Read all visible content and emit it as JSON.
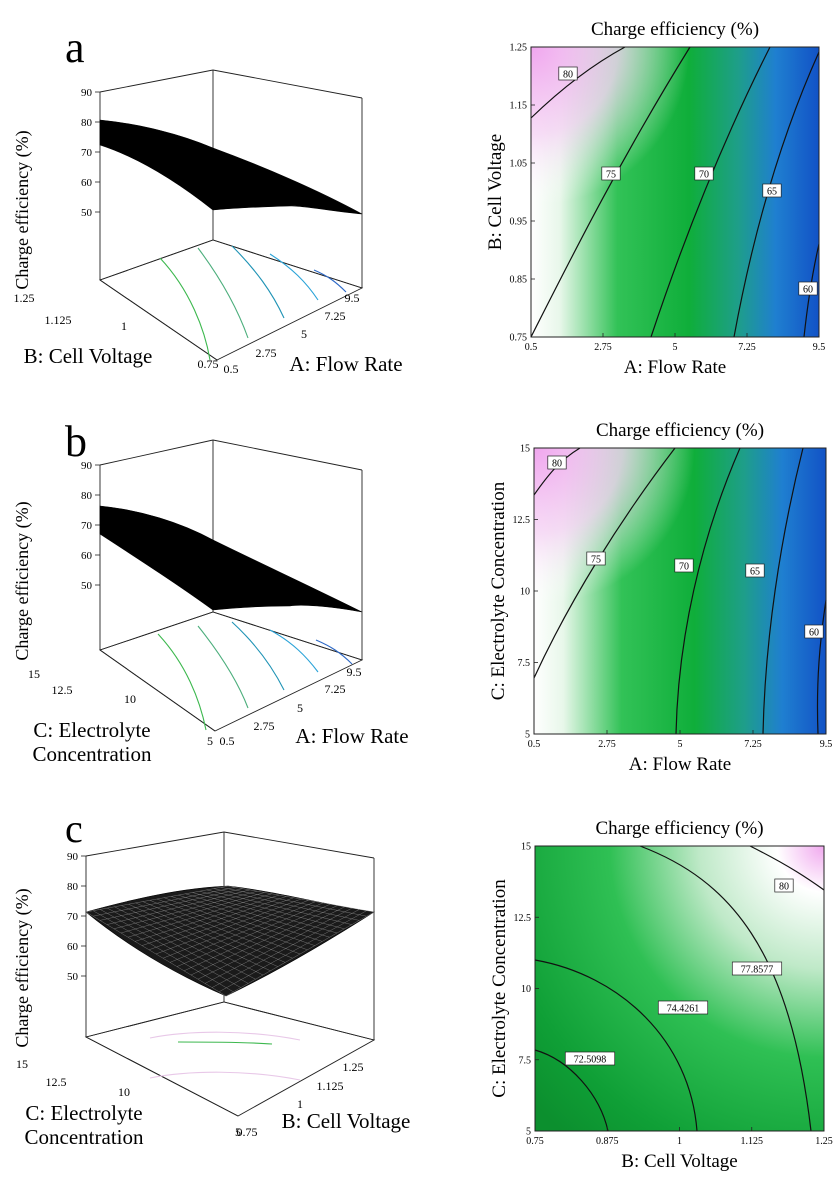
{
  "chart_data": [
    {
      "type": "surface",
      "panel_label": "a",
      "zlabel": "Charge efficiency (%)",
      "z_ticks": [
        "90",
        "80",
        "70",
        "60",
        "50"
      ],
      "zlim": [
        50,
        90
      ],
      "x_factor": {
        "label": "A: Flow Rate",
        "ticks": [
          "0.5",
          "2.75",
          "5",
          "7.25",
          "9.5"
        ]
      },
      "y_factor": {
        "label": "B: Cell Voltage",
        "ticks": [
          "1.25",
          "1.125",
          "1",
          "0.75"
        ]
      },
      "surface_corners": {
        "front_left": 80,
        "back_left": 80,
        "front_right": 62,
        "back_right": 56
      },
      "surface_fill": "#000000"
    },
    {
      "type": "contour",
      "title": "Charge efficiency (%)",
      "xlabel": "A: Flow Rate",
      "ylabel": "B: Cell Voltage",
      "x_ticks": [
        "0.5",
        "2.75",
        "5",
        "7.25",
        "9.5"
      ],
      "y_ticks": [
        "1.25",
        "1.15",
        "1.05",
        "0.95",
        "0.85",
        "0.75"
      ],
      "contour_labels": [
        "80",
        "75",
        "70",
        "65",
        "60"
      ],
      "colors": {
        "high": "#f2b6f0",
        "mid": "#12b13c",
        "low": "#1457c8"
      }
    },
    {
      "type": "surface",
      "panel_label": "b",
      "zlabel": "Charge efficiency (%)",
      "z_ticks": [
        "90",
        "80",
        "70",
        "60",
        "50"
      ],
      "zlim": [
        50,
        90
      ],
      "x_factor": {
        "label": "A: Flow Rate",
        "ticks": [
          "0.5",
          "2.75",
          "5",
          "7.25",
          "9.5"
        ]
      },
      "y_factor": {
        "label": "C: Electrolyte Concentration",
        "label_lines": [
          "C: Electrolyte",
          "Concentration"
        ],
        "ticks": [
          "15",
          "12.5",
          "10",
          "5"
        ]
      },
      "surface_corners": {
        "front_left": 80,
        "back_left": 80,
        "front_right": 61,
        "back_right": 57
      },
      "surface_fill": "#000000"
    },
    {
      "type": "contour",
      "title": "Charge efficiency (%)",
      "xlabel": "A: Flow Rate",
      "ylabel": "C: Electrolyte Concentration",
      "x_ticks": [
        "0.5",
        "2.75",
        "5",
        "7.25",
        "9.5"
      ],
      "y_ticks": [
        "15",
        "12.5",
        "10",
        "7.5",
        "5"
      ],
      "contour_labels": [
        "80",
        "75",
        "70",
        "65",
        "60"
      ],
      "colors": {
        "high": "#f2b6f0",
        "mid": "#12b13c",
        "low": "#1457c8"
      }
    },
    {
      "type": "surface",
      "panel_label": "c",
      "zlabel": "Charge efficiency (%)",
      "z_ticks": [
        "90",
        "80",
        "70",
        "60",
        "50"
      ],
      "zlim": [
        50,
        90
      ],
      "x_factor": {
        "label": "B: Cell Voltage",
        "ticks": [
          "0.75",
          "1",
          "1.125",
          "1.25"
        ]
      },
      "y_factor": {
        "label": "C: Electrolyte Concentration",
        "label_lines": [
          "C: Electrolyte",
          "Concentration"
        ],
        "ticks": [
          "15",
          "12.5",
          "10",
          "5"
        ]
      },
      "surface_corners": {
        "front_left": 74,
        "back_left": 80,
        "front_right": 75,
        "back_right": 84
      },
      "surface_fill": "#1a1a1a"
    },
    {
      "type": "contour",
      "title": "Charge efficiency (%)",
      "xlabel": "B: Cell Voltage",
      "ylabel": "C: Electrolyte Concentration",
      "x_ticks": [
        "0.75",
        "0.875",
        "1",
        "1.125",
        "1.25"
      ],
      "y_ticks": [
        "15",
        "12.5",
        "10",
        "7.5",
        "5"
      ],
      "contour_labels": [
        "80",
        "77.8577",
        "74.4261",
        "72.5098"
      ],
      "colors": {
        "high": "#f2b6f0",
        "mid": "#12b13c",
        "low": "#0f9a34"
      }
    }
  ]
}
